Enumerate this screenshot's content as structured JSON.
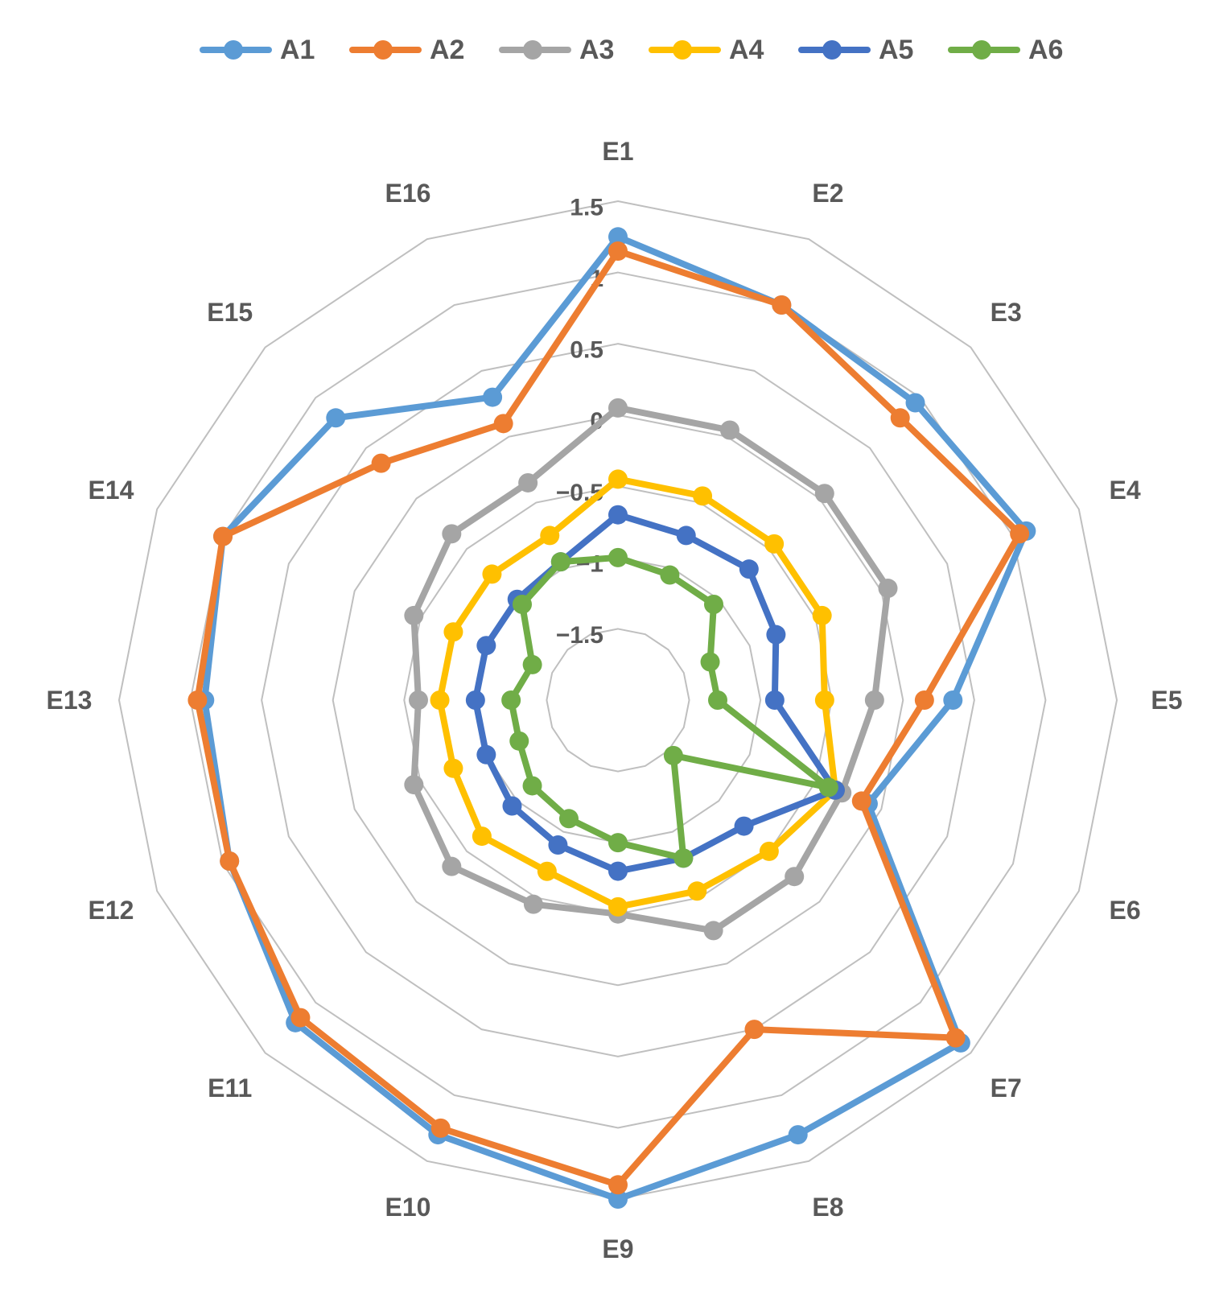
{
  "chart_data": {
    "type": "radar",
    "categories": [
      "E1",
      "E2",
      "E3",
      "E4",
      "E5",
      "E6",
      "E7",
      "E8",
      "E9",
      "E10",
      "E11",
      "E12",
      "E13",
      "E14",
      "E15",
      "E16"
    ],
    "rlim": [
      -2,
      1.5
    ],
    "ticks": [
      {
        "value": 1.5,
        "label": "1.5"
      },
      {
        "value": 1,
        "label": "1"
      },
      {
        "value": 0.5,
        "label": "0.5"
      },
      {
        "value": 0,
        "label": "0"
      },
      {
        "value": -0.5,
        "label": "−0.5"
      },
      {
        "value": -1,
        "label": "−1"
      },
      {
        "value": -1.5,
        "label": "−1.5"
      }
    ],
    "grid": true,
    "legend_position": "top",
    "series": [
      {
        "name": "A1",
        "color": "#5B9BD5",
        "values": [
          1.25,
          1.0,
          0.95,
          1.1,
          0.35,
          -0.1,
          1.4,
          1.3,
          1.5,
          1.3,
          1.2,
          0.95,
          0.9,
          1.0,
          0.8,
          0.3
        ]
      },
      {
        "name": "A2",
        "color": "#ED7D31",
        "values": [
          1.15,
          1.0,
          0.8,
          1.05,
          0.15,
          -0.15,
          1.35,
          0.5,
          1.4,
          1.25,
          1.15,
          0.95,
          0.95,
          1.0,
          0.35,
          0.1
        ]
      },
      {
        "name": "A3",
        "color": "#A5A5A5",
        "values": [
          0.05,
          0.05,
          0.05,
          0.05,
          -0.2,
          -0.3,
          -0.25,
          -0.25,
          -0.5,
          -0.45,
          -0.35,
          -0.45,
          -0.6,
          -0.45,
          -0.35,
          -0.35
        ]
      },
      {
        "name": "A4",
        "color": "#FFC000",
        "values": [
          -0.45,
          -0.45,
          -0.45,
          -0.45,
          -0.55,
          -0.35,
          -0.5,
          -0.55,
          -0.55,
          -0.7,
          -0.65,
          -0.75,
          -0.75,
          -0.75,
          -0.75,
          -0.75
        ]
      },
      {
        "name": "A5",
        "color": "#4472C4",
        "values": [
          -0.7,
          -0.75,
          -0.7,
          -0.8,
          -0.9,
          -0.35,
          -0.75,
          -0.8,
          -0.8,
          -0.9,
          -0.95,
          -1.0,
          -1.0,
          -1.0,
          -1.0,
          -0.95
        ]
      },
      {
        "name": "A6",
        "color": "#70AD47",
        "values": [
          -1.0,
          -1.05,
          -1.05,
          -1.3,
          -1.3,
          -0.4,
          -1.45,
          -0.8,
          -1.0,
          -1.1,
          -1.15,
          -1.25,
          -1.25,
          -1.35,
          -1.05,
          -0.95
        ]
      }
    ]
  }
}
